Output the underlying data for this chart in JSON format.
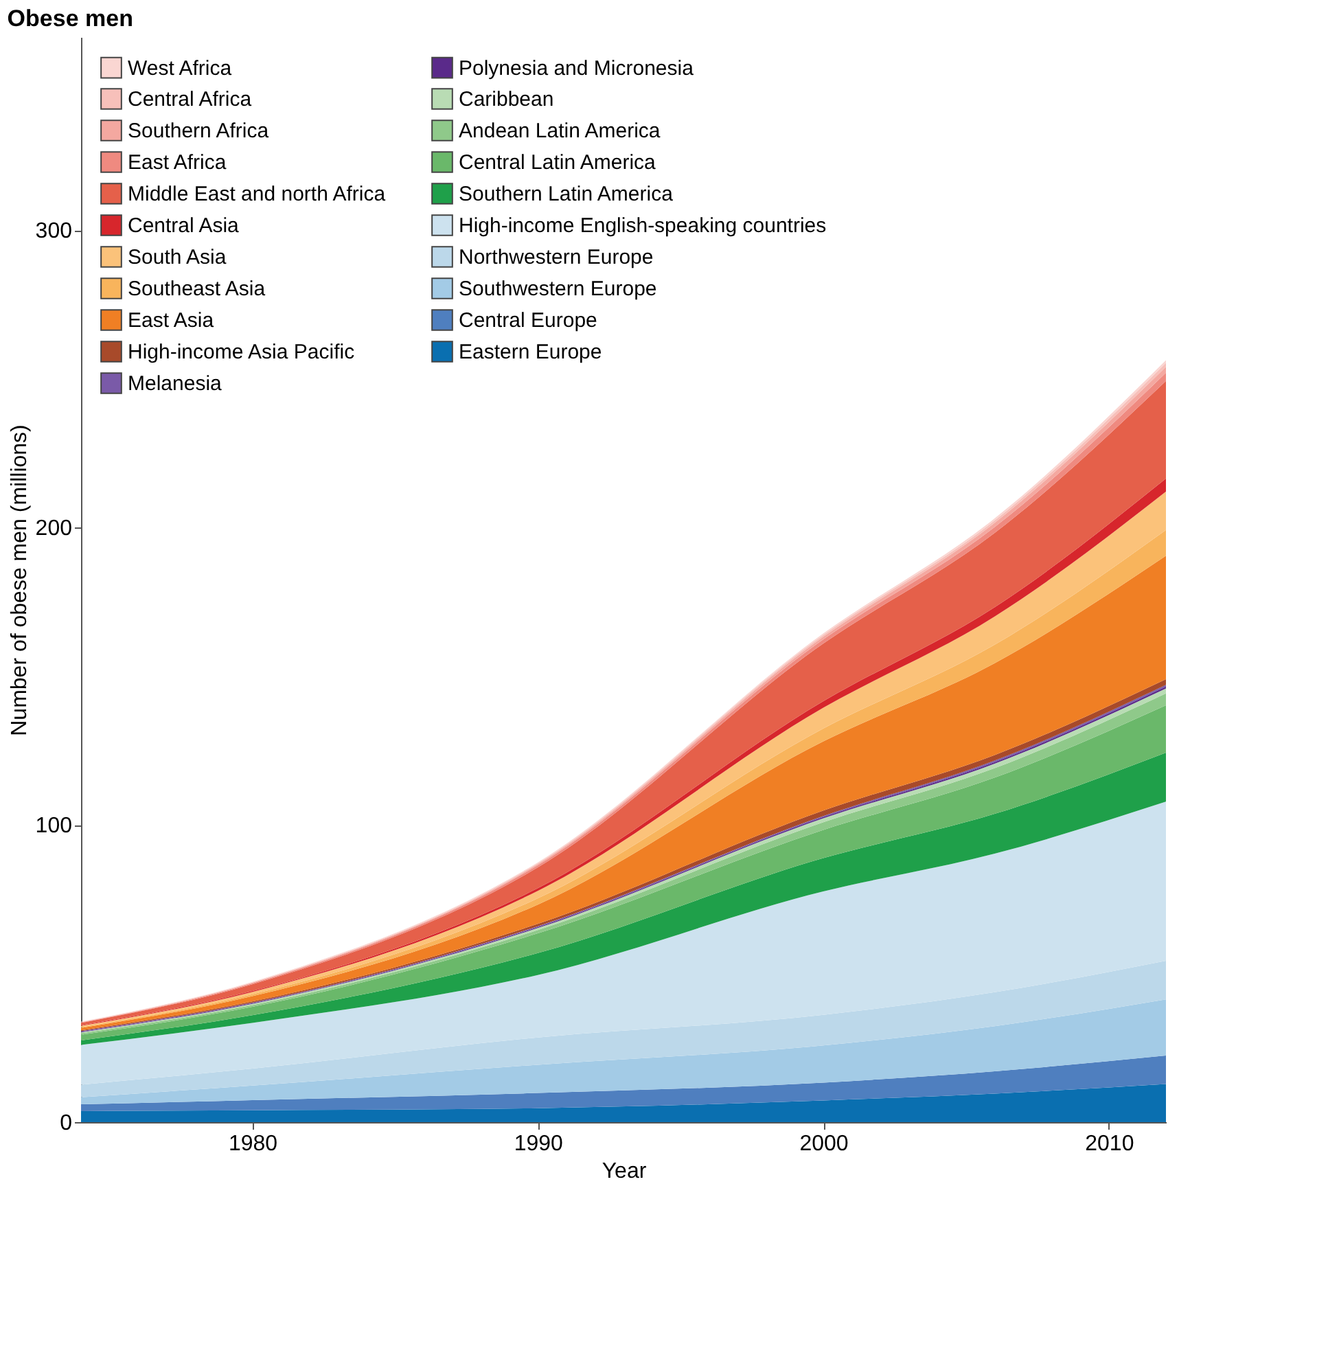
{
  "chart_data": {
    "type": "area",
    "stacked": true,
    "title": "Obese men",
    "xlabel": "Year",
    "ylabel": "Number of obese men (millions)",
    "x": [
      1974,
      1980,
      1990,
      2000,
      2006,
      2012
    ],
    "xlim": [
      1974,
      2012
    ],
    "xticks": [
      1980,
      1990,
      2000,
      2010
    ],
    "ylim": [
      0,
      365
    ],
    "yticks": [
      0,
      100,
      200,
      300
    ],
    "grid": false,
    "legend": "top left",
    "series": [
      {
        "name": "Eastern Europe",
        "color": "#0a6fb0",
        "values": [
          3.7,
          4.0,
          4.7,
          7.3,
          9.6,
          12.8
        ]
      },
      {
        "name": "Central Europe",
        "color": "#4f7fbf",
        "values": [
          2.3,
          3.4,
          5.1,
          6.0,
          7.5,
          9.6
        ]
      },
      {
        "name": "Southwestern Europe",
        "color": "#a3cbe6",
        "values": [
          2.4,
          4.9,
          9.5,
          12.5,
          15.2,
          18.9
        ]
      },
      {
        "name": "Northwestern Europe",
        "color": "#bcd8ea",
        "values": [
          4.2,
          5.7,
          9.2,
          10.3,
          11.4,
          13.0
        ]
      },
      {
        "name": "High-income English-speaking countries",
        "color": "#cde2ef",
        "values": [
          13.4,
          15.4,
          21.0,
          41.5,
          46.6,
          53.5
        ]
      },
      {
        "name": "Southern Latin America",
        "color": "#1fa04a",
        "values": [
          1.5,
          2.6,
          7.4,
          11.2,
          13.4,
          16.5
        ]
      },
      {
        "name": "Central Latin America",
        "color": "#6ab86a",
        "values": [
          1.9,
          2.8,
          6.6,
          9.5,
          12.2,
          15.9
        ]
      },
      {
        "name": "Andean Latin America",
        "color": "#8fc98a",
        "values": [
          0.5,
          0.6,
          1.1,
          2.6,
          3.2,
          4.0
        ]
      },
      {
        "name": "Caribbean",
        "color": "#b9dcb4",
        "values": [
          0.3,
          0.4,
          0.7,
          1.3,
          1.5,
          1.7
        ]
      },
      {
        "name": "Polynesia and Micronesia",
        "color": "#5a2a8a",
        "values": [
          0.2,
          0.2,
          0.3,
          0.4,
          0.5,
          0.6
        ]
      },
      {
        "name": "Melanesia",
        "color": "#7a5aa8",
        "values": [
          0.2,
          0.2,
          0.3,
          0.4,
          0.5,
          0.6
        ]
      },
      {
        "name": "High-income Asia Pacific",
        "color": "#a84a2a",
        "values": [
          0.3,
          0.4,
          0.8,
          1.8,
          1.9,
          1.9
        ]
      },
      {
        "name": "East Asia",
        "color": "#f07f24",
        "values": [
          0.8,
          1.8,
          6.5,
          23.3,
          30.9,
          41.5
        ]
      },
      {
        "name": "Southeast Asia",
        "color": "#f8b45c",
        "values": [
          0.3,
          0.6,
          2.1,
          4.3,
          6.2,
          8.7
        ]
      },
      {
        "name": "South Asia",
        "color": "#fbc27a",
        "values": [
          0.4,
          0.8,
          2.5,
          7.0,
          9.5,
          12.9
        ]
      },
      {
        "name": "Central Asia",
        "color": "#d7262c",
        "values": [
          0.2,
          0.3,
          0.9,
          2.2,
          3.1,
          4.4
        ]
      },
      {
        "name": "Middle East and north Africa",
        "color": "#e5604a",
        "values": [
          0.8,
          2.3,
          7.0,
          19.4,
          25.0,
          32.8
        ]
      },
      {
        "name": "East Africa",
        "color": "#ef8a80",
        "values": [
          0.1,
          0.3,
          0.7,
          1.4,
          2.0,
          2.8
        ]
      },
      {
        "name": "Southern Africa",
        "color": "#f4a8a0",
        "values": [
          0.1,
          0.2,
          0.4,
          0.9,
          1.4,
          2.0
        ]
      },
      {
        "name": "Central Africa",
        "color": "#f7c0ba",
        "values": [
          0.1,
          0.1,
          0.3,
          0.6,
          0.8,
          1.3
        ]
      },
      {
        "name": "West Africa",
        "color": "#fad6d2",
        "values": [
          0.1,
          0.2,
          0.3,
          0.5,
          0.7,
          0.9
        ]
      }
    ]
  }
}
